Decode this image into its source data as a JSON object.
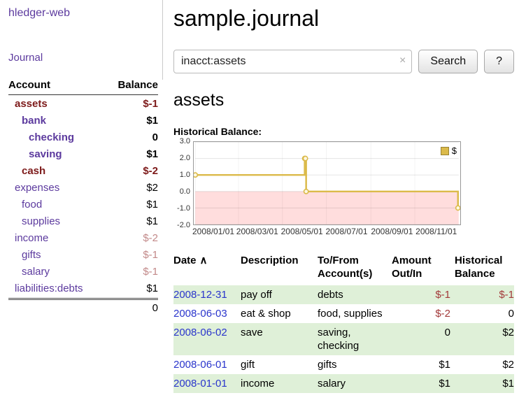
{
  "app": {
    "title": "hledger-web",
    "nav_journal": "Journal"
  },
  "icons": {
    "sort_asc": "∧",
    "clear": "×"
  },
  "colors": {
    "link_purple": "#5c3a9e",
    "maroon": "#7d1a1a",
    "pale_red": "#c28989",
    "date_blue": "#2a35cc",
    "row_green": "#dff0d8",
    "negative_red": "#a33a3a",
    "chart_line_gold": "#dbba4a",
    "chart_negative_region": "#ffdddd"
  },
  "sidebar": {
    "header": {
      "account": "Account",
      "balance": "Balance"
    },
    "accounts": [
      {
        "name": "assets",
        "balance": "$-1"
      },
      {
        "name": "bank",
        "balance": "$1"
      },
      {
        "name": "checking",
        "balance": "0"
      },
      {
        "name": "saving",
        "balance": "$1"
      },
      {
        "name": "cash",
        "balance": "$-2"
      },
      {
        "name": "expenses",
        "balance": "$2"
      },
      {
        "name": "food",
        "balance": "$1"
      },
      {
        "name": "supplies",
        "balance": "$1"
      },
      {
        "name": "income",
        "balance": "$-2"
      },
      {
        "name": "gifts",
        "balance": "$-1"
      },
      {
        "name": "salary",
        "balance": "$-1"
      },
      {
        "name": "liabilities:debts",
        "balance": "$1"
      }
    ],
    "total": "0"
  },
  "main": {
    "title": "sample.journal",
    "search": {
      "value": "inacct:assets",
      "button": "Search",
      "help": "?"
    },
    "account_title": "assets",
    "chart_label": "Historical Balance:"
  },
  "chart_data": {
    "type": "line",
    "title": "Historical Balance",
    "step": true,
    "grid": true,
    "legend_position": "top-right",
    "x_range": [
      "2008-01-01",
      "2009-01-01"
    ],
    "ylim": [
      -2,
      3
    ],
    "yticks": [
      {
        "value": 3,
        "label": "3.0"
      },
      {
        "value": 2,
        "label": "2.0"
      },
      {
        "value": 1,
        "label": "1.0"
      },
      {
        "value": 0,
        "label": "0.0"
      },
      {
        "value": -1,
        "label": "-1.0"
      },
      {
        "value": -2,
        "label": "-2.0"
      }
    ],
    "xticks": [
      {
        "date": "2008-01-01",
        "label": "2008/01/01"
      },
      {
        "date": "2008-03-01",
        "label": "2008/03/01"
      },
      {
        "date": "2008-05-01",
        "label": "2008/05/01"
      },
      {
        "date": "2008-07-01",
        "label": "2008/07/01"
      },
      {
        "date": "2008-09-01",
        "label": "2008/09/01"
      },
      {
        "date": "2008-11-01",
        "label": "2008/11/01"
      }
    ],
    "colors": {
      "negative_region": "#ffdddd"
    },
    "series": [
      {
        "name": "$",
        "color": "#dbba4a",
        "points": [
          {
            "date": "2008-01-01",
            "value": 1
          },
          {
            "date": "2008-06-01",
            "value": 2
          },
          {
            "date": "2008-06-02",
            "value": 2
          },
          {
            "date": "2008-06-03",
            "value": 0
          },
          {
            "date": "2008-12-31",
            "value": -1
          }
        ]
      }
    ]
  },
  "register": {
    "headers": {
      "date": "Date",
      "description": "Description",
      "accounts": "To/From Account(s)",
      "amount": "Amount Out/In",
      "balance": "Historical Balance"
    },
    "rows": [
      {
        "date": "2008-12-31",
        "description": "pay off",
        "accounts": "debts",
        "amount": "$-1",
        "balance": "$-1"
      },
      {
        "date": "2008-06-03",
        "description": "eat & shop",
        "accounts": "food, supplies",
        "amount": "$-2",
        "balance": "0"
      },
      {
        "date": "2008-06-02",
        "description": "save",
        "accounts": "saving, checking",
        "amount": "0",
        "balance": "$2"
      },
      {
        "date": "2008-06-01",
        "description": "gift",
        "accounts": "gifts",
        "amount": "$1",
        "balance": "$2"
      },
      {
        "date": "2008-01-01",
        "description": "income",
        "accounts": "salary",
        "amount": "$1",
        "balance": "$1"
      }
    ]
  }
}
